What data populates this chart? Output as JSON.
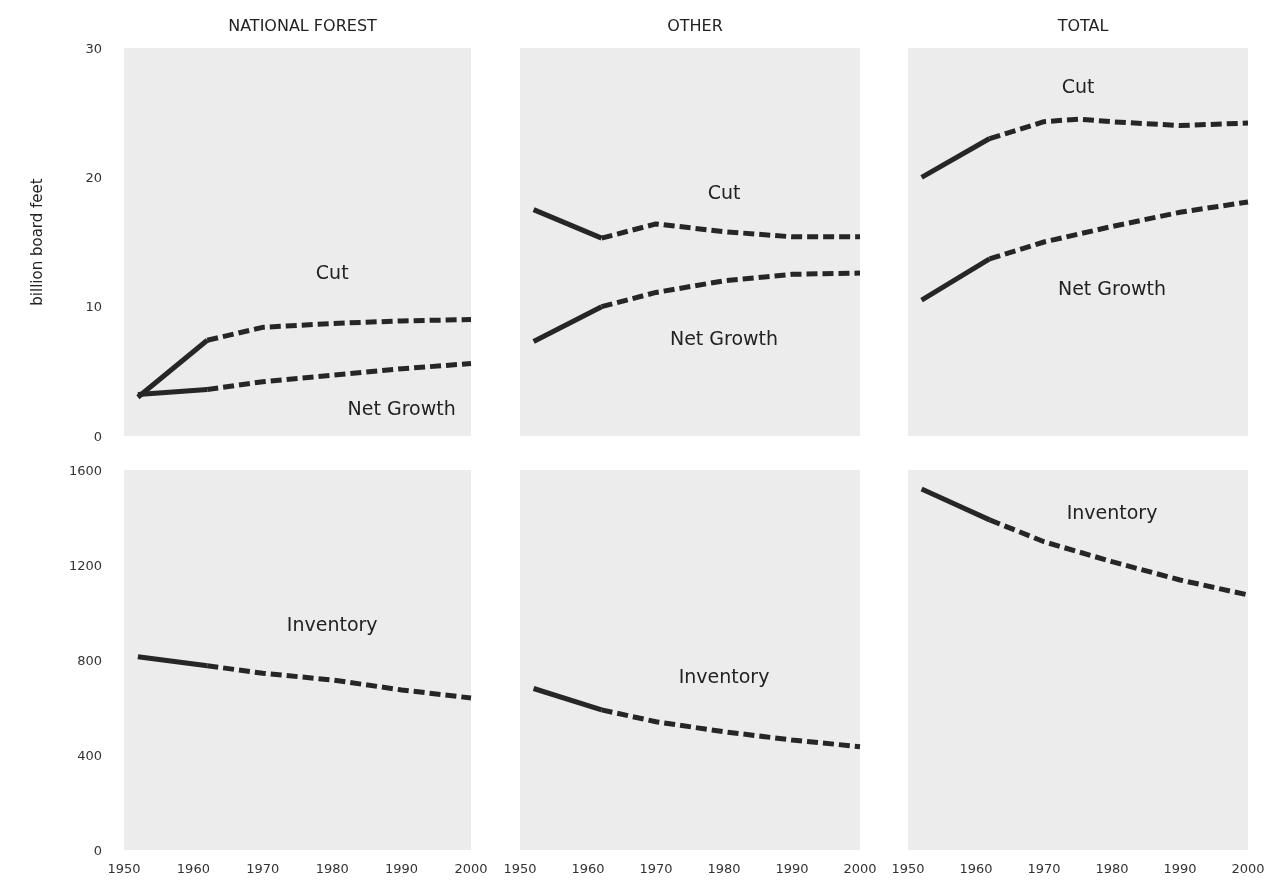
{
  "chart_data": [
    {
      "type": "line",
      "title": "NATIONAL FOREST",
      "ylabel": "billion board feet",
      "xlim": [
        1950,
        2000
      ],
      "xticks": [
        1950,
        1960,
        1970,
        1980,
        1990,
        2000
      ],
      "ylim": [
        0,
        30
      ],
      "yticks": [
        0,
        10,
        20,
        30
      ],
      "tick_labels": "y",
      "grid": false,
      "series": [
        {
          "color": "#262626",
          "line_style": "solid",
          "x": [
            1952,
            1962
          ],
          "values": [
            3.0,
            7.4
          ]
        },
        {
          "name": "Cut",
          "color": "#262626",
          "line_style": "dashed",
          "x": [
            1962,
            1970,
            1980,
            1990,
            2000
          ],
          "values": [
            7.4,
            8.4,
            8.7,
            8.9,
            9.0
          ]
        },
        {
          "color": "#262626",
          "line_style": "solid",
          "x": [
            1952,
            1962
          ],
          "values": [
            3.2,
            3.6
          ]
        },
        {
          "name": "Net Growth",
          "color": "#262626",
          "line_style": "dashed",
          "x": [
            1962,
            1970,
            1980,
            1990,
            2000
          ],
          "values": [
            3.6,
            4.2,
            4.7,
            5.2,
            5.6
          ]
        }
      ]
    },
    {
      "type": "line",
      "title": "OTHER",
      "xlim": [
        1950,
        2000
      ],
      "xticks": [
        1950,
        1960,
        1970,
        1980,
        1990,
        2000
      ],
      "ylim": [
        0,
        30
      ],
      "yticks": [
        0,
        10,
        20,
        30
      ],
      "tick_labels": false,
      "grid": false,
      "series": [
        {
          "color": "#262626",
          "line_style": "solid",
          "x": [
            1952,
            1962
          ],
          "values": [
            17.5,
            15.3
          ]
        },
        {
          "name": "Cut",
          "color": "#262626",
          "line_style": "dashed",
          "x": [
            1962,
            1970,
            1980,
            1990,
            2000
          ],
          "values": [
            15.3,
            16.4,
            15.8,
            15.4,
            15.4
          ]
        },
        {
          "color": "#262626",
          "line_style": "solid",
          "x": [
            1952,
            1962
          ],
          "values": [
            7.3,
            10.0
          ]
        },
        {
          "name": "Net Growth",
          "color": "#262626",
          "line_style": "dashed",
          "x": [
            1962,
            1970,
            1980,
            1990,
            2000
          ],
          "values": [
            10.0,
            11.1,
            12.0,
            12.5,
            12.6
          ]
        }
      ]
    },
    {
      "type": "line",
      "title": "TOTAL",
      "xlim": [
        1950,
        2000
      ],
      "xticks": [
        1950,
        1960,
        1970,
        1980,
        1990,
        2000
      ],
      "ylim": [
        0,
        30
      ],
      "yticks": [
        0,
        10,
        20,
        30
      ],
      "tick_labels": false,
      "grid": false,
      "series": [
        {
          "color": "#262626",
          "line_style": "solid",
          "x": [
            1952,
            1962
          ],
          "values": [
            20.0,
            23.0
          ]
        },
        {
          "name": "Cut",
          "color": "#262626",
          "line_style": "dashed",
          "x": [
            1962,
            1970,
            1975,
            1980,
            1990,
            2000
          ],
          "values": [
            23.0,
            24.3,
            24.5,
            24.3,
            24.0,
            24.2
          ]
        },
        {
          "color": "#262626",
          "line_style": "solid",
          "x": [
            1952,
            1962
          ],
          "values": [
            10.5,
            13.7
          ]
        },
        {
          "name": "Net Growth",
          "color": "#262626",
          "line_style": "dashed",
          "x": [
            1962,
            1970,
            1980,
            1990,
            2000
          ],
          "values": [
            13.7,
            15.0,
            16.2,
            17.3,
            18.1
          ]
        }
      ]
    },
    {
      "type": "line",
      "xlim": [
        1950,
        2000
      ],
      "xticks": [
        1950,
        1960,
        1970,
        1980,
        1990,
        2000
      ],
      "ylim": [
        0,
        1600
      ],
      "yticks": [
        0,
        400,
        800,
        1200,
        1600
      ],
      "grid": false,
      "series": [
        {
          "color": "#262626",
          "line_style": "solid",
          "x": [
            1952,
            1962
          ],
          "values": [
            814,
            776
          ]
        },
        {
          "name": "Inventory",
          "color": "#262626",
          "line_style": "dashed",
          "x": [
            1962,
            1970,
            1980,
            1990,
            2000
          ],
          "values": [
            776,
            744,
            716,
            674,
            640
          ]
        }
      ]
    },
    {
      "type": "line",
      "xlim": [
        1950,
        2000
      ],
      "xticks": [
        1950,
        1960,
        1970,
        1980,
        1990,
        2000
      ],
      "ylim": [
        0,
        1600
      ],
      "yticks": [
        0,
        400,
        800,
        1200,
        1600
      ],
      "tick_labels": "x",
      "grid": false,
      "series": [
        {
          "color": "#262626",
          "line_style": "solid",
          "x": [
            1952,
            1962
          ],
          "values": [
            680,
            590
          ]
        },
        {
          "name": "Inventory",
          "color": "#262626",
          "line_style": "dashed",
          "x": [
            1962,
            1970,
            1980,
            1990,
            2000
          ],
          "values": [
            590,
            540,
            498,
            463,
            435
          ]
        }
      ]
    },
    {
      "type": "line",
      "xlim": [
        1950,
        2000
      ],
      "xticks": [
        1950,
        1960,
        1970,
        1980,
        1990,
        2000
      ],
      "ylim": [
        0,
        1600
      ],
      "yticks": [
        0,
        400,
        800,
        1200,
        1600
      ],
      "tick_labels": "x",
      "grid": false,
      "series": [
        {
          "color": "#262626",
          "line_style": "solid",
          "x": [
            1952,
            1962
          ],
          "values": [
            1520,
            1390
          ]
        },
        {
          "name": "Inventory",
          "color": "#262626",
          "line_style": "dashed",
          "x": [
            1962,
            1970,
            1980,
            1990,
            2000
          ],
          "values": [
            1390,
            1298,
            1214,
            1137,
            1074
          ]
        }
      ]
    }
  ]
}
